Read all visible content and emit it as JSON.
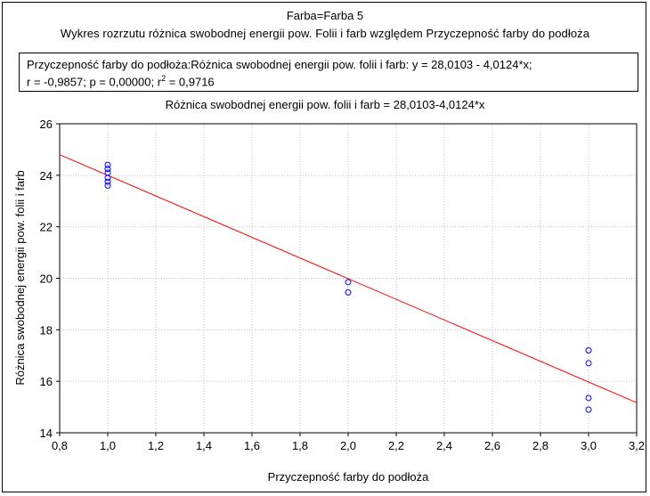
{
  "header": {
    "title": "Farba=Farba 5",
    "subtitle": "Wykres rozrzutu    różnica swobodnej energii pow. Folii i farb względem Przyczepność farby do podłoża"
  },
  "stats": {
    "line1": "Przyczepność farby do podłoża:Różnica swobodnej energii pow. folii i farb:   y = 28,0103 - 4,0124*x;",
    "line2_prefix": "r = -0,9857; p = 0,00000; r",
    "line2_sup": "2",
    "line2_suffix": " = 0,9716"
  },
  "chart_data": {
    "type": "scatter",
    "title": "Różnica swobodnej energii pow. folii i farb = 28,0103-4,0124*x",
    "xlabel": "Przyczepność farby do podłoża",
    "ylabel": "Różnica swobodnej energii pow. folii i farb",
    "xlim": [
      0.8,
      3.2
    ],
    "ylim": [
      14,
      26
    ],
    "xticks": [
      0.8,
      1.0,
      1.2,
      1.4,
      1.6,
      1.8,
      2.0,
      2.2,
      2.4,
      2.6,
      2.8,
      3.0,
      3.2
    ],
    "xtick_labels": [
      "0,8",
      "1,0",
      "1,2",
      "1,4",
      "1,6",
      "1,8",
      "2,0",
      "2,2",
      "2,4",
      "2,6",
      "2,8",
      "3,0",
      "3,2"
    ],
    "yticks": [
      14,
      16,
      18,
      20,
      22,
      24,
      26
    ],
    "ytick_labels": [
      "14",
      "16",
      "18",
      "20",
      "22",
      "24",
      "26"
    ],
    "grid": true,
    "points": [
      {
        "x": 1.0,
        "y": 24.4
      },
      {
        "x": 1.0,
        "y": 24.25
      },
      {
        "x": 1.0,
        "y": 24.1
      },
      {
        "x": 1.0,
        "y": 23.9
      },
      {
        "x": 1.0,
        "y": 23.75
      },
      {
        "x": 1.0,
        "y": 23.6
      },
      {
        "x": 2.0,
        "y": 19.85
      },
      {
        "x": 2.0,
        "y": 19.45
      },
      {
        "x": 3.0,
        "y": 17.2
      },
      {
        "x": 3.0,
        "y": 16.7
      },
      {
        "x": 3.0,
        "y": 15.35
      },
      {
        "x": 3.0,
        "y": 14.9
      }
    ],
    "regression": {
      "intercept": 28.0103,
      "slope": -4.0124
    },
    "colors": {
      "points": "#0000ff",
      "line": "#ff0000",
      "grid": "#c0c0c0",
      "axes": "#000000"
    }
  }
}
